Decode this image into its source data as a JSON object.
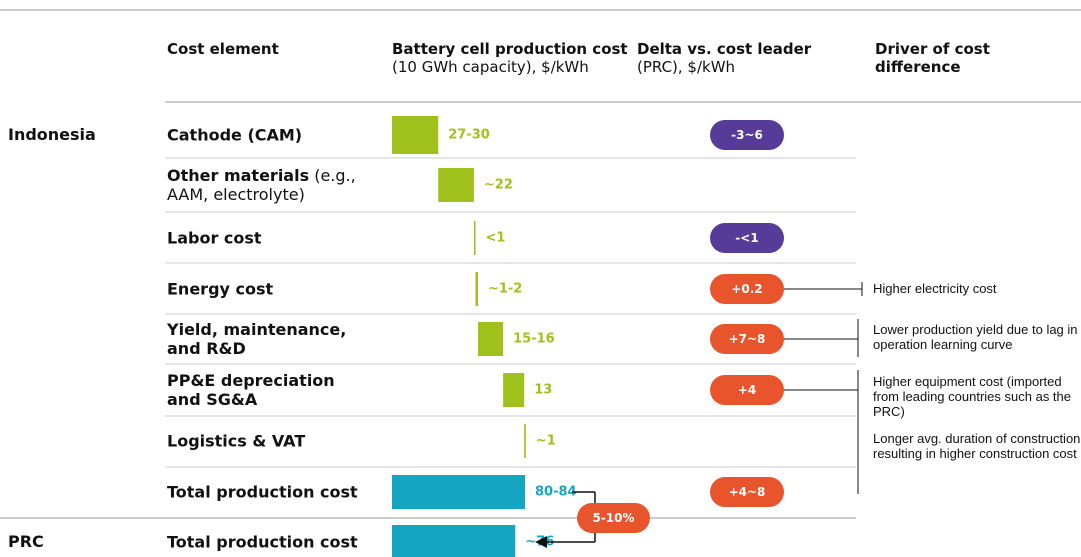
{
  "chart_data": {
    "type": "waterfall",
    "headers": [
      {
        "bold": "Cost element"
      },
      {
        "bold": "Battery cell production cost",
        "regular": "(10 GWh capacity), $/kWh"
      },
      {
        "bold": "Delta vs. cost leader",
        "regular": "(PRC), $/kWh"
      },
      {
        "bold": "Driver of cost difference"
      }
    ],
    "groups": [
      {
        "label": "Indonesia",
        "row": 0
      },
      {
        "label": "PRC",
        "row": 8
      }
    ],
    "categories": [
      "Cathode (CAM)",
      "Other materials",
      "Labor cost",
      "Energy cost",
      "Yield, maintenance, and R&D",
      "PP&E depreciation and SG&A",
      "Logistics & VAT",
      "Total production cost",
      "Total production cost"
    ],
    "category_notes": [
      null,
      "(e.g., AAM, electrolyte)",
      null,
      null,
      null,
      null,
      null,
      null,
      null
    ],
    "values": [
      28.5,
      22,
      1,
      1.5,
      15.5,
      13,
      1,
      82,
      76
    ],
    "value_labels": [
      "27-30",
      "~22",
      "<1",
      "~1-2",
      "15-16",
      "13",
      "~1",
      "80-84",
      "~76"
    ],
    "kinds": [
      "step",
      "step",
      "step",
      "step",
      "step",
      "step",
      "step",
      "total",
      "total"
    ],
    "colors": {
      "step": "#a0c01c",
      "total": "#14a5c3"
    },
    "deltas": [
      {
        "label": "-3~6",
        "color": "#573b98"
      },
      null,
      {
        "label": "-<1",
        "color": "#573b98"
      },
      {
        "label": "+0.2",
        "color": "#e8542b"
      },
      {
        "label": "+7~8",
        "color": "#e8542b"
      },
      {
        "label": "+4",
        "color": "#e8542b"
      },
      null,
      {
        "label": "+4~8",
        "color": "#e8542b"
      },
      null
    ],
    "drivers": [
      {
        "row": 3,
        "texts": [
          "Higher electricity cost"
        ]
      },
      {
        "row": 4,
        "texts": [
          "Lower production yield due to lag in operation learning curve"
        ]
      },
      {
        "row": 5,
        "texts": [
          "Higher equipment cost (imported from leading countries such as the PRC)",
          "Longer avg. duration of construction resulting in higher construction cost"
        ]
      }
    ],
    "gap_label": "5-10%",
    "gap_color": "#e8542b"
  }
}
